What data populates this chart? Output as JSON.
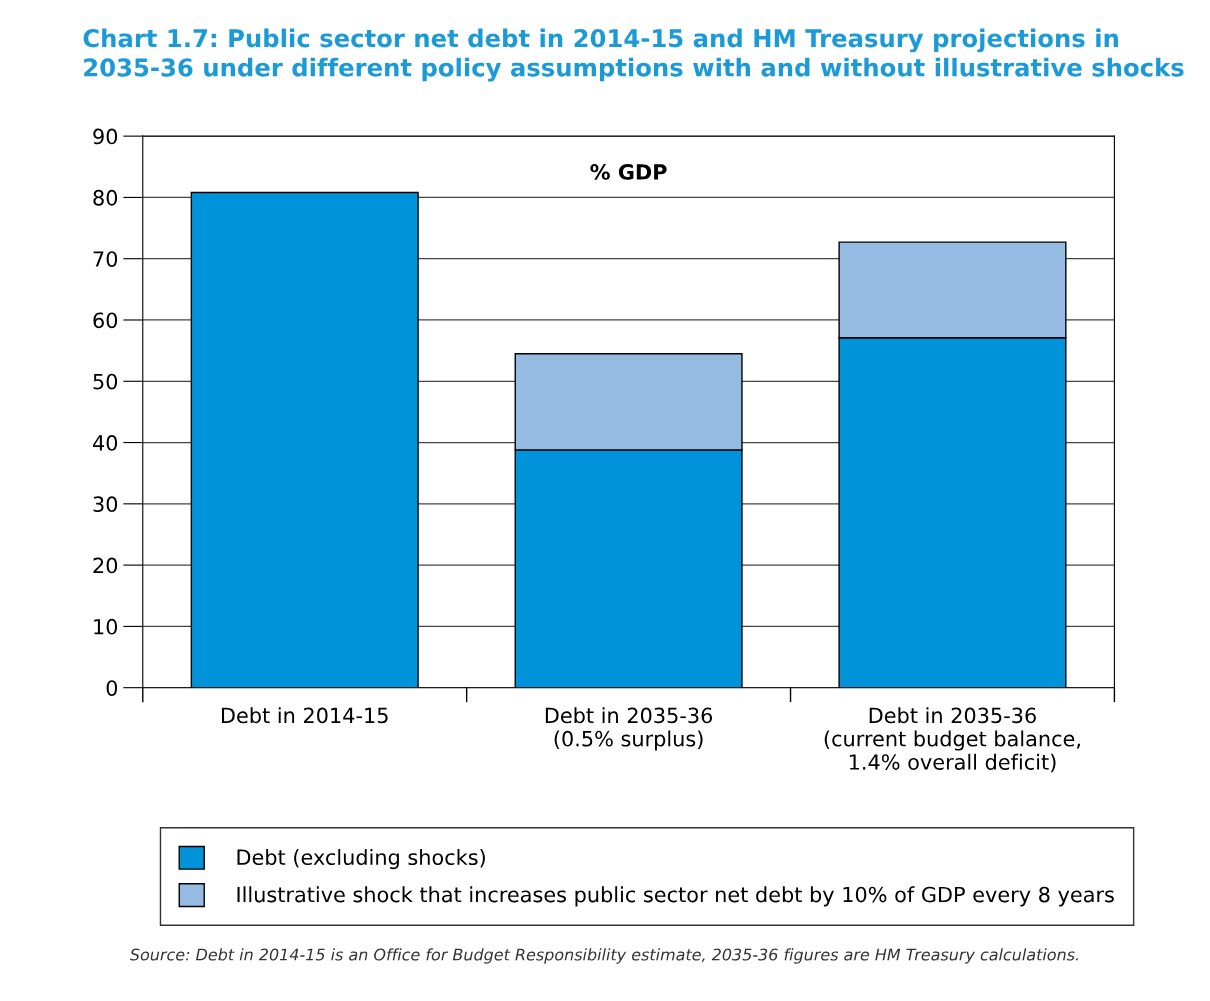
{
  "chart_data": {
    "type": "bar",
    "stacked": true,
    "title": "Chart 1.7: Public sector net debt in 2014-15 and HM Treasury projections in 2035-36 under different policy assumptions with and without illustrative shocks",
    "categories": [
      "Debt in 2014-15",
      "Debt in 2035-36\n(0.5% surplus)",
      "Debt in 2035-36\n(current budget balance,\n1.4% overall deficit)"
    ],
    "series": [
      {
        "name": "Debt (excluding shocks)",
        "color": "#0093d9",
        "values": [
          80.8,
          38.8,
          57.1
        ]
      },
      {
        "name": "Illustrative shock that increases public sector net debt by 10% of GDP every 8 years",
        "color": "#96bbe3",
        "values": [
          null,
          15.7,
          15.6
        ]
      }
    ],
    "ylim": [
      0,
      90
    ],
    "yticks": [
      0,
      10,
      20,
      30,
      40,
      50,
      60,
      70,
      80,
      90
    ],
    "grid": "y",
    "legend": "bottom",
    "annotations": [
      "% GDP",
      "Source: Debt in 2014-15 is an Office for Budget Responsibility estimate, 2035-36 figures are HM Treasury calculations."
    ]
  }
}
